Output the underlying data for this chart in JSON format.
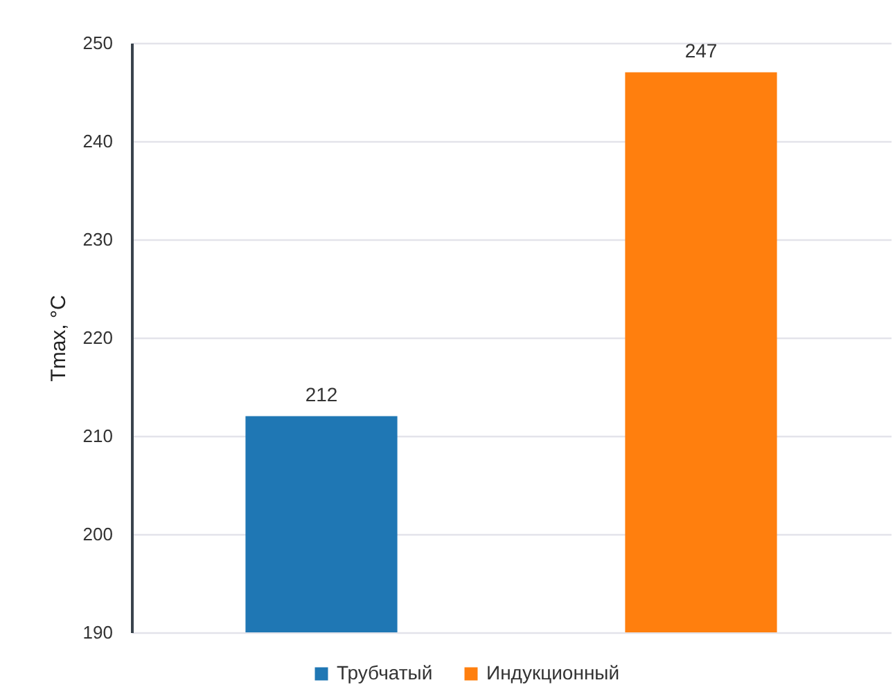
{
  "chart_data": {
    "type": "bar",
    "ylabel": "Tmax, °C",
    "categories": [
      null,
      null
    ],
    "series": [
      {
        "name": "Трубчатый",
        "color": "#1f77b4",
        "values": [
          212,
          null
        ]
      },
      {
        "name": "Индукционный",
        "color": "#ff7f0e",
        "values": [
          null,
          247
        ]
      }
    ],
    "ylim": [
      190,
      250
    ],
    "yticks": [
      190,
      200,
      210,
      220,
      230,
      240,
      250
    ],
    "grid": "y",
    "legend": "bottom",
    "data_labels": true
  }
}
